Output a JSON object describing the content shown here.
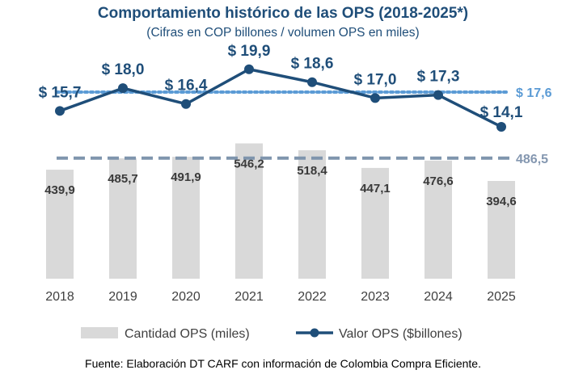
{
  "chart_data": {
    "type": "bar",
    "title": "Comportamiento histórico de las OPS (2018-2025*)",
    "subtitle": "(Cifras en COP billones / volumen OPS en miles)",
    "categories": [
      "2018",
      "2019",
      "2020",
      "2021",
      "2022",
      "2023",
      "2024",
      "2025"
    ],
    "series": [
      {
        "name": "Cantidad OPS (miles)",
        "type": "bar",
        "values": [
          439.9,
          485.7,
          491.9,
          546.2,
          518.4,
          447.1,
          476.6,
          394.6
        ],
        "labels": [
          "439,9",
          "485,7",
          "491,9",
          "546,2",
          "518,4",
          "447,1",
          "476,6",
          "394,6"
        ]
      },
      {
        "name": "Valor OPS ($billones)",
        "type": "line",
        "values": [
          15.7,
          18.0,
          16.4,
          19.9,
          18.6,
          17.0,
          17.3,
          14.1
        ],
        "labels": [
          "$ 15,7",
          "$ 18,0",
          "$ 16,4",
          "$ 19,9",
          "$ 18,6",
          "$ 17,0",
          "$ 17,3",
          "$ 14,1"
        ]
      }
    ],
    "reference_lines": [
      {
        "series": "Valor OPS ($billones)",
        "value": 17.6,
        "label": "$ 17,6",
        "style": "dotted"
      },
      {
        "series": "Cantidad OPS (miles)",
        "value": 486.5,
        "label": "486,5",
        "style": "dashed"
      }
    ],
    "bar_axis_range": [
      0,
      750
    ],
    "line_axis_range": [
      0,
      22
    ],
    "legend_position": "bottom",
    "grid": false,
    "source": "Fuente: Elaboración DT CARF con información de Colombia Compra Eficiente.",
    "colors": {
      "title": "#1f4e79",
      "bars": "#d9d9d9",
      "line": "#1f4e79",
      "line_labels": "#1f4e79",
      "avg_value_line": "#5b9bd5",
      "avg_count_line": "#7f95ad",
      "avg_value_label": "#5b9bd5",
      "avg_count_label": "#8497b0"
    }
  }
}
